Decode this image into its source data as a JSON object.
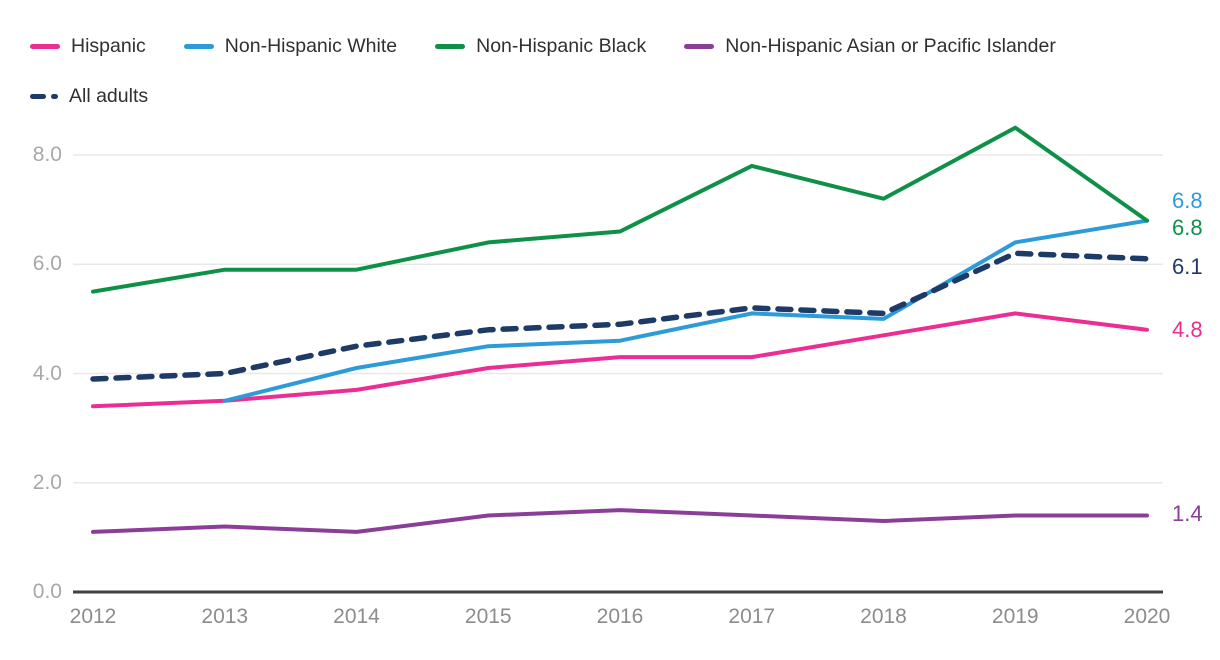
{
  "chart_data": {
    "type": "line",
    "title": "",
    "xlabel": "",
    "ylabel": "",
    "grid": true,
    "legend_position": "top-left",
    "x_ticks": [
      "2012",
      "2013",
      "2014",
      "2015",
      "2016",
      "2017",
      "2018",
      "2019",
      "2020"
    ],
    "y_ticks": [
      "8.0",
      "6.0",
      "4.0",
      "2.0",
      "0.0"
    ],
    "y_tick_values": [
      8,
      6,
      4,
      2,
      0
    ],
    "x_range": [
      2012,
      2020
    ],
    "ylim": [
      0,
      8.8
    ],
    "series": [
      {
        "name": "Hispanic",
        "color": "#EC2E92",
        "line_style": "solid",
        "years": [
          2012,
          2013,
          2014,
          2015,
          2016,
          2017,
          2018,
          2019,
          2020
        ],
        "values": [
          3.4,
          3.5,
          3.7,
          4.1,
          4.3,
          4.3,
          4.7,
          5.1,
          4.8
        ],
        "end_label": "4.8",
        "label_offset": 0
      },
      {
        "name": "Non-Hispanic White",
        "color": "#2D9BD8",
        "line_style": "solid",
        "years": [
          2013,
          2014,
          2015,
          2016,
          2017,
          2018,
          2019,
          2020
        ],
        "values": [
          3.5,
          4.1,
          4.5,
          4.6,
          5.1,
          5.0,
          6.4,
          6.8
        ],
        "end_label": "6.8",
        "label_offset": -20
      },
      {
        "name": "Non-Hispanic Black",
        "color": "#0F9048",
        "line_style": "solid",
        "years": [
          2012,
          2013,
          2014,
          2015,
          2016,
          2017,
          2018,
          2019,
          2020
        ],
        "values": [
          5.5,
          5.9,
          5.9,
          6.4,
          6.6,
          7.8,
          7.2,
          8.5,
          6.8
        ],
        "end_label": "6.8",
        "label_offset": 7
      },
      {
        "name": "Non-Hispanic Asian or Pacific Islander",
        "color": "#8B3E98",
        "line_style": "solid",
        "years": [
          2012,
          2013,
          2014,
          2015,
          2016,
          2017,
          2018,
          2019,
          2020
        ],
        "values": [
          1.1,
          1.2,
          1.1,
          1.4,
          1.5,
          1.4,
          1.3,
          1.4,
          1.4
        ],
        "end_label": "1.4",
        "label_offset": -2
      },
      {
        "name": "All adults",
        "color": "#1E3A67",
        "line_style": "dashed",
        "years": [
          2012,
          2013,
          2014,
          2015,
          2016,
          2017,
          2018,
          2019,
          2020
        ],
        "values": [
          3.9,
          4.0,
          4.5,
          4.8,
          4.9,
          5.2,
          5.1,
          6.2,
          6.1
        ],
        "end_label": "6.1",
        "label_offset": 8
      }
    ],
    "colors": {
      "grid": "#e8e8e8",
      "axis": "#3f3f3f",
      "x_tick_label": "#8c8c8c",
      "y_tick_label": "#a8a8a8",
      "legend_text": "#303030"
    }
  }
}
